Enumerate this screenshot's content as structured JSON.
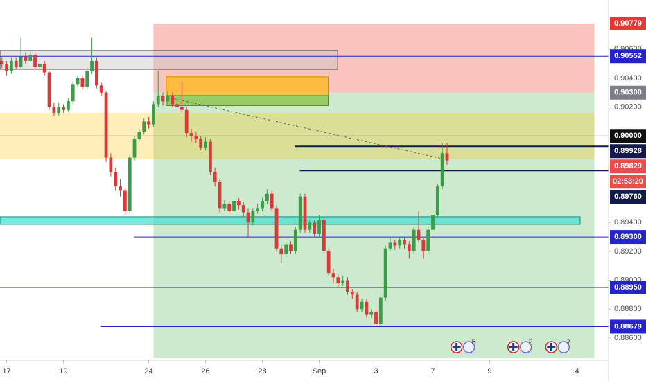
{
  "chart_data": {
    "type": "candlestick",
    "up_color": "#3d9c4a",
    "down_color": "#d93a37",
    "xlim": [
      -0.4,
      128.1
    ],
    "ylim": [
      0.88446,
      0.90942
    ],
    "xticks": [
      {
        "value": 1,
        "label": "17"
      },
      {
        "value": 13,
        "label": "19"
      },
      {
        "value": 31,
        "label": "24"
      },
      {
        "value": 43,
        "label": "26"
      },
      {
        "value": 55,
        "label": "28"
      },
      {
        "value": 67,
        "label": "Sep"
      },
      {
        "value": 79,
        "label": "3"
      },
      {
        "value": 91,
        "label": "7"
      },
      {
        "value": 103,
        "label": "9"
      },
      {
        "value": 121,
        "label": "14"
      }
    ],
    "yticks": [
      {
        "value": 0.906,
        "label": "0.90600"
      },
      {
        "value": 0.904,
        "label": "0.90400"
      },
      {
        "value": 0.902,
        "label": "0.90200"
      },
      {
        "value": 0.894,
        "label": "0.89400"
      },
      {
        "value": 0.892,
        "label": "0.89200"
      },
      {
        "value": 0.89,
        "label": "0.89000"
      },
      {
        "value": 0.888,
        "label": "0.88800"
      },
      {
        "value": 0.886,
        "label": "0.88600"
      }
    ],
    "zones": [
      {
        "from": 32,
        "to": 125.1,
        "top": 0.90779,
        "bottom": 0.903,
        "color": "rgba(244,67,54,0.32)"
      },
      {
        "from": 32,
        "to": 125.1,
        "top": 0.903,
        "bottom": 0.8846,
        "color": "rgba(76,175,80,0.28)"
      },
      {
        "from": -0.4,
        "to": 125.1,
        "top": 0.9016,
        "bottom": 0.8984,
        "color": "rgba(255,193,7,0.28)"
      },
      {
        "from": -0.4,
        "to": 70.9,
        "top": 0.90592,
        "bottom": 0.90462,
        "color": "rgba(200,200,200,0.45)",
        "stroke": "#444"
      },
      {
        "from": 34.7,
        "to": 68.9,
        "top": 0.9041,
        "bottom": 0.9028,
        "color": "rgba(255,183,0,0.65)",
        "stroke": "#c79000"
      },
      {
        "from": 34.7,
        "to": 68.9,
        "top": 0.9028,
        "bottom": 0.9021,
        "color": "rgba(139,195,74,0.8)",
        "stroke": "#5a8d1f"
      },
      {
        "from": -0.4,
        "to": 122.1,
        "top": 0.8944,
        "bottom": 0.89387,
        "color": "rgba(64,224,208,0.7)",
        "stroke": "#1b8c80"
      }
    ],
    "trend_line": {
      "from": 34.7,
      "to": 93.3,
      "start": 0.9027,
      "end": 0.8984
    },
    "price_lines": [
      {
        "value": 0.90779,
        "label": "0.90779",
        "color": "#e53935",
        "from": null
      },
      {
        "value": 0.90552,
        "label": "0.90552",
        "color": "#2424c8",
        "from": -0.4
      },
      {
        "value": 0.903,
        "label": "0.90300",
        "color": "#7a7d87",
        "from": null
      },
      {
        "value": 0.9,
        "label": "0.90000",
        "color": "#111111",
        "from": -0.4
      },
      {
        "value": 0.89928,
        "label": "0.89928",
        "color": "#131b4c",
        "from": 61.8
      },
      {
        "value": 0.89829,
        "label": "0.89829",
        "color": "#ef4b4b",
        "from": null
      },
      {
        "value": 0.8976,
        "label": "0.89760",
        "color": "#131b4c",
        "from": 62.9
      },
      {
        "value": 0.893,
        "label": "0.89300",
        "color": "#2424c8",
        "from": 27.9
      },
      {
        "value": 0.8895,
        "label": "0.88950",
        "color": "#2424c8",
        "from": -0.4
      },
      {
        "value": 0.88679,
        "label": "0.88679",
        "color": "#2424c8",
        "from": 20.8
      }
    ],
    "countdown": "02:53:20",
    "events": [
      {
        "x": 96,
        "count": 5
      },
      {
        "x": 108,
        "count": 2
      },
      {
        "x": 116,
        "count": 7
      }
    ],
    "ohlc": [
      [
        0.9052,
        0.9054,
        0.9047,
        0.905
      ],
      [
        0.905,
        0.9052,
        0.9042,
        0.9045
      ],
      [
        0.9045,
        0.9054,
        0.9043,
        0.9052
      ],
      [
        0.9052,
        0.9054,
        0.9046,
        0.9048
      ],
      [
        0.9048,
        0.9068,
        0.9047,
        0.9055
      ],
      [
        0.9055,
        0.9058,
        0.905,
        0.9052
      ],
      [
        0.9052,
        0.9059,
        0.9051,
        0.9056
      ],
      [
        0.9056,
        0.9058,
        0.9046,
        0.9048
      ],
      [
        0.9048,
        0.9053,
        0.9046,
        0.905
      ],
      [
        0.905,
        0.9052,
        0.9042,
        0.9044
      ],
      [
        0.9044,
        0.9045,
        0.9018,
        0.902
      ],
      [
        0.902,
        0.9023,
        0.9014,
        0.9016
      ],
      [
        0.9016,
        0.9023,
        0.9014,
        0.902
      ],
      [
        0.902,
        0.9022,
        0.9016,
        0.9018
      ],
      [
        0.9018,
        0.9026,
        0.9017,
        0.9024
      ],
      [
        0.9024,
        0.9038,
        0.9022,
        0.9036
      ],
      [
        0.9036,
        0.9042,
        0.9034,
        0.904
      ],
      [
        0.904,
        0.9042,
        0.9032,
        0.9034
      ],
      [
        0.9034,
        0.9047,
        0.9032,
        0.9045
      ],
      [
        0.9045,
        0.9068,
        0.9043,
        0.9052
      ],
      [
        0.9052,
        0.9054,
        0.9033,
        0.9035
      ],
      [
        0.9035,
        0.9037,
        0.9028,
        0.903
      ],
      [
        0.903,
        0.9031,
        0.8982,
        0.8985
      ],
      [
        0.8985,
        0.8988,
        0.8972,
        0.8975
      ],
      [
        0.8975,
        0.8978,
        0.8962,
        0.8965
      ],
      [
        0.8965,
        0.897,
        0.8958,
        0.8962
      ],
      [
        0.8962,
        0.8964,
        0.8945,
        0.8948
      ],
      [
        0.8948,
        0.8987,
        0.8946,
        0.8985
      ],
      [
        0.8985,
        0.9,
        0.8983,
        0.8998
      ],
      [
        0.8998,
        0.9005,
        0.8996,
        0.9003
      ],
      [
        0.9003,
        0.9012,
        0.9001,
        0.901
      ],
      [
        0.901,
        0.9013,
        0.9005,
        0.9008
      ],
      [
        0.9008,
        0.9024,
        0.9006,
        0.9022
      ],
      [
        0.9022,
        0.9045,
        0.902,
        0.9028
      ],
      [
        0.9028,
        0.903,
        0.9021,
        0.9024
      ],
      [
        0.9024,
        0.9031,
        0.9022,
        0.9028
      ],
      [
        0.9028,
        0.903,
        0.902,
        0.9022
      ],
      [
        0.9022,
        0.9025,
        0.9018,
        0.902
      ],
      [
        0.902,
        0.9038,
        0.9016,
        0.9018
      ],
      [
        0.9018,
        0.902,
        0.8999,
        0.9002
      ],
      [
        0.9002,
        0.9005,
        0.8996,
        0.9
      ],
      [
        0.9,
        0.9003,
        0.8995,
        0.8998
      ],
      [
        0.8998,
        0.9,
        0.899,
        0.8992
      ],
      [
        0.8992,
        0.8999,
        0.899,
        0.8996
      ],
      [
        0.8996,
        0.8998,
        0.8973,
        0.8975
      ],
      [
        0.8975,
        0.8978,
        0.8965,
        0.8968
      ],
      [
        0.8968,
        0.897,
        0.8947,
        0.895
      ],
      [
        0.895,
        0.8956,
        0.8948,
        0.8953
      ],
      [
        0.8953,
        0.8955,
        0.8946,
        0.8948
      ],
      [
        0.8948,
        0.8958,
        0.8946,
        0.8955
      ],
      [
        0.8955,
        0.8957,
        0.8949,
        0.8952
      ],
      [
        0.8952,
        0.8954,
        0.8944,
        0.8947
      ],
      [
        0.8947,
        0.895,
        0.893,
        0.894
      ],
      [
        0.894,
        0.895,
        0.8938,
        0.8948
      ],
      [
        0.8948,
        0.8953,
        0.8946,
        0.895
      ],
      [
        0.895,
        0.8957,
        0.8948,
        0.8955
      ],
      [
        0.8955,
        0.8963,
        0.8953,
        0.896
      ],
      [
        0.896,
        0.8962,
        0.8948,
        0.895
      ],
      [
        0.895,
        0.8952,
        0.892,
        0.8922
      ],
      [
        0.8922,
        0.8925,
        0.8912,
        0.8918
      ],
      [
        0.8918,
        0.8927,
        0.8916,
        0.8925
      ],
      [
        0.8925,
        0.8927,
        0.8918,
        0.892
      ],
      [
        0.892,
        0.8937,
        0.8918,
        0.8935
      ],
      [
        0.8935,
        0.896,
        0.8933,
        0.8958
      ],
      [
        0.8958,
        0.896,
        0.8933,
        0.8935
      ],
      [
        0.8935,
        0.8942,
        0.8933,
        0.894
      ],
      [
        0.894,
        0.8942,
        0.893,
        0.8932
      ],
      [
        0.8932,
        0.8945,
        0.893,
        0.8942
      ],
      [
        0.8942,
        0.8944,
        0.8918,
        0.892
      ],
      [
        0.892,
        0.8922,
        0.8903,
        0.8905
      ],
      [
        0.8905,
        0.8908,
        0.8898,
        0.8902
      ],
      [
        0.8902,
        0.8904,
        0.8895,
        0.8898
      ],
      [
        0.8898,
        0.8903,
        0.8896,
        0.89
      ],
      [
        0.89,
        0.8902,
        0.889,
        0.8892
      ],
      [
        0.8892,
        0.8894,
        0.8887,
        0.889
      ],
      [
        0.889,
        0.8892,
        0.8878,
        0.888
      ],
      [
        0.888,
        0.8887,
        0.8878,
        0.8885
      ],
      [
        0.8885,
        0.8887,
        0.8874,
        0.8876
      ],
      [
        0.8876,
        0.888,
        0.8874,
        0.8878
      ],
      [
        0.8878,
        0.888,
        0.8868,
        0.887
      ],
      [
        0.887,
        0.889,
        0.8868,
        0.8888
      ],
      [
        0.8888,
        0.8924,
        0.8886,
        0.8922
      ],
      [
        0.8922,
        0.893,
        0.892,
        0.8926
      ],
      [
        0.8926,
        0.8928,
        0.8921,
        0.8924
      ],
      [
        0.8924,
        0.893,
        0.8922,
        0.8928
      ],
      [
        0.8928,
        0.893,
        0.8922,
        0.8925
      ],
      [
        0.8925,
        0.8927,
        0.8915,
        0.892
      ],
      [
        0.892,
        0.8937,
        0.8918,
        0.8935
      ],
      [
        0.8935,
        0.8948,
        0.8926,
        0.8928
      ],
      [
        0.8928,
        0.893,
        0.8915,
        0.892
      ],
      [
        0.892,
        0.8937,
        0.8918,
        0.8935
      ],
      [
        0.8935,
        0.8947,
        0.8933,
        0.8945
      ],
      [
        0.8945,
        0.8967,
        0.8943,
        0.8965
      ],
      [
        0.8965,
        0.8995,
        0.8963,
        0.8988
      ],
      [
        0.8988,
        0.8995,
        0.898,
        0.8983
      ]
    ]
  }
}
